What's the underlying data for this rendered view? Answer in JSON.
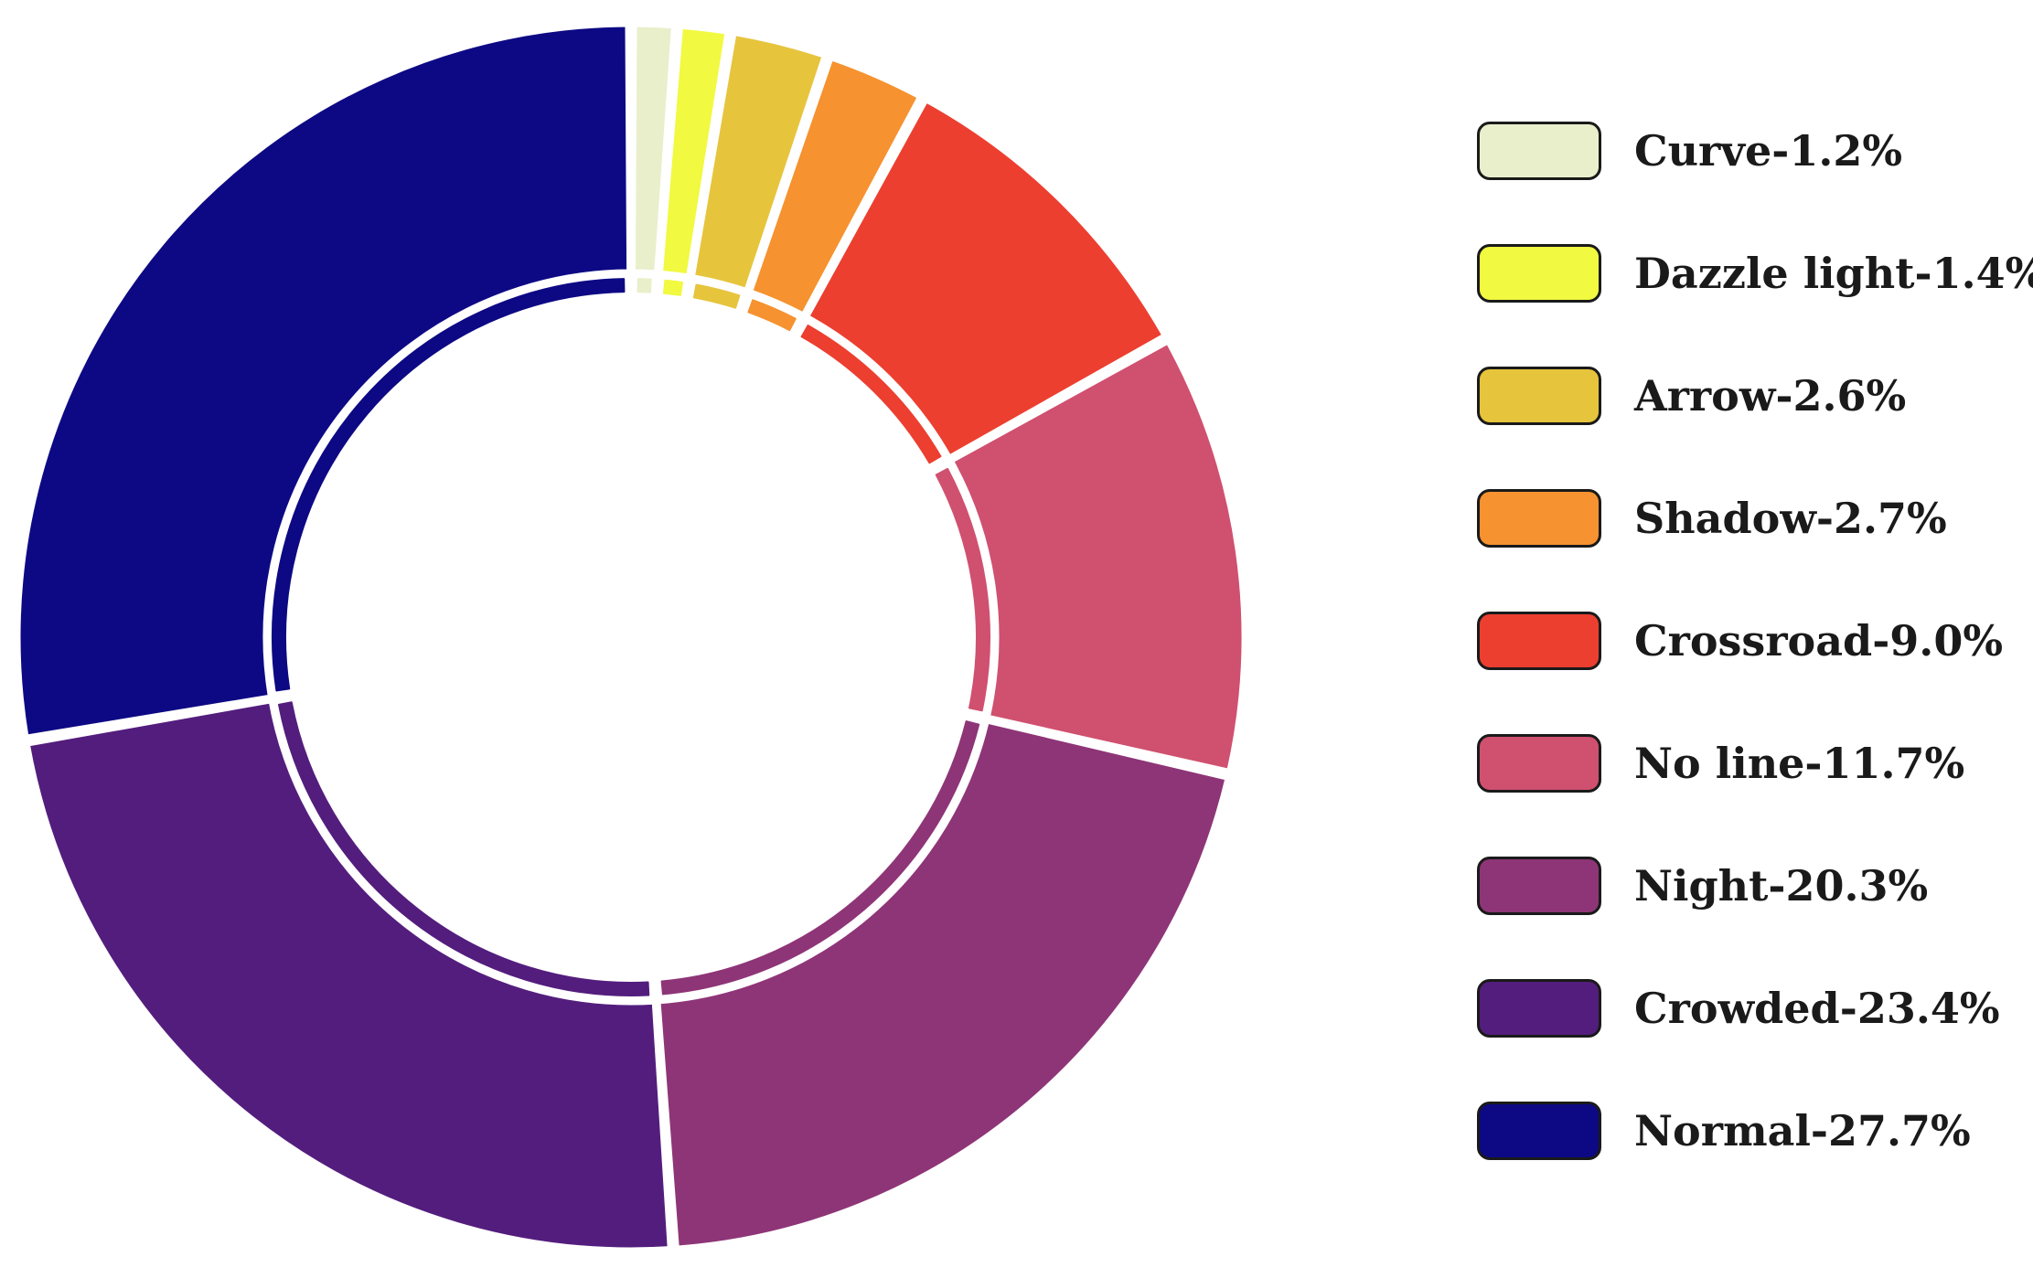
{
  "chart_data": {
    "type": "pie",
    "style": "donut",
    "legend_position": "right",
    "slices": [
      {
        "label": "Curve-1.2%",
        "value": 1.2,
        "color": "#E9EFCB"
      },
      {
        "label": "Dazzle light-1.4%",
        "value": 1.4,
        "color": "#F1F940"
      },
      {
        "label": "Arrow-2.6%",
        "value": 2.6,
        "color": "#E6C43C"
      },
      {
        "label": "Shadow-2.7%",
        "value": 2.7,
        "color": "#F6922F"
      },
      {
        "label": "Crossroad-9.0%",
        "value": 9.0,
        "color": "#EC3F30"
      },
      {
        "label": "No line-11.7%",
        "value": 11.7,
        "color": "#D0506F"
      },
      {
        "label": "Night-20.3%",
        "value": 20.3,
        "color": "#8E3577"
      },
      {
        "label": "Crowded-23.4%",
        "value": 23.4,
        "color": "#531D7D"
      },
      {
        "label": "Normal-27.7%",
        "value": 27.7,
        "color": "#0D0984"
      }
    ]
  }
}
